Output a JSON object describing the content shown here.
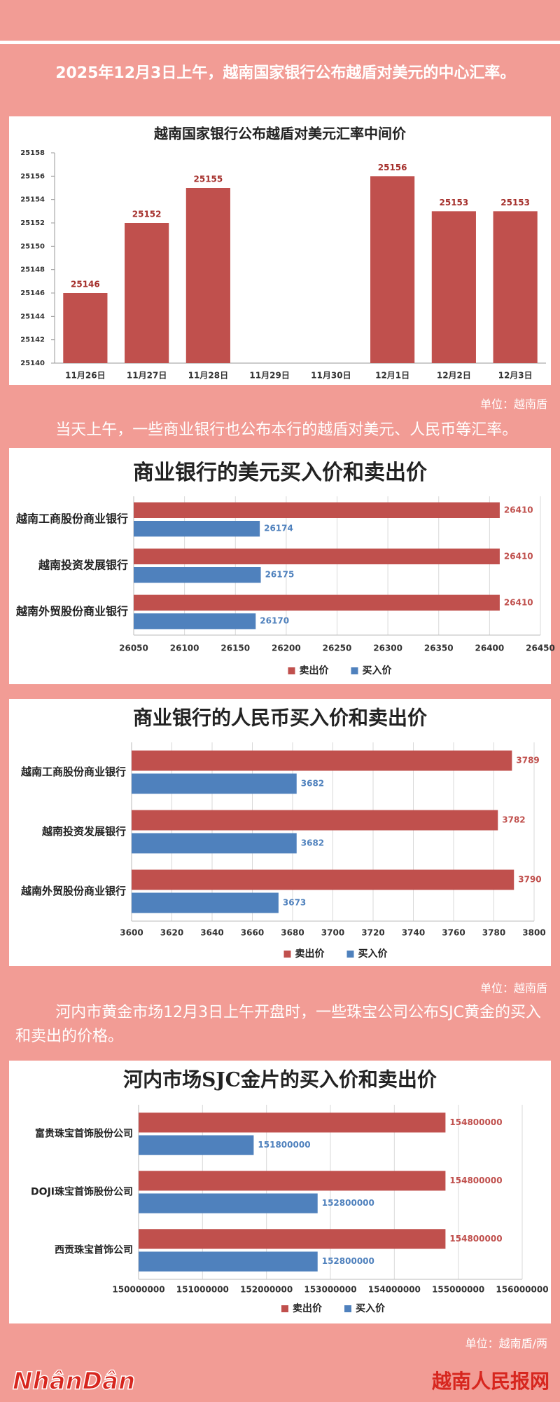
{
  "paragraphs": [
    "2025年12月3日上午，越南国家银行公布越盾对美元的中心汇率。",
    "当天上午，一些商业银行也公布本行的越盾对美元、人民币等汇率。",
    "河内市黄金市场12月3日上午开盘时，一些珠宝公司公布SJC黄金的买入和卖出的价格。"
  ],
  "units": [
    "单位：越南盾",
    "单位：越南盾",
    "单位：越南盾/两"
  ],
  "footer": {
    "logo": "NhânDân",
    "site": "越南人民报网"
  },
  "chart_data": [
    {
      "type": "bar",
      "title": "越南国家银行公布越盾对美元汇率中间价",
      "categories": [
        "11月26日",
        "11月27日",
        "11月28日",
        "11月29日",
        "11月30日",
        "12月1日",
        "12月2日",
        "12月3日"
      ],
      "values": [
        25146,
        25152,
        25155,
        null,
        null,
        25156,
        25153,
        25153
      ],
      "color": "#c0504d",
      "ylim": [
        25140,
        25158
      ],
      "yticks": [
        25140,
        25142,
        25144,
        25146,
        25148,
        25150,
        25152,
        25154,
        25156,
        25158
      ],
      "grid": false
    },
    {
      "type": "barh",
      "title": "商业银行的美元买入价和卖出价",
      "categories": [
        "越南工商股份商业银行",
        "越南投资发展银行",
        "越南外贸股份商业银行"
      ],
      "series": [
        {
          "name": "卖出价",
          "color": "#c0504d",
          "values": [
            26410,
            26410,
            26410
          ]
        },
        {
          "name": "买入价",
          "color": "#4f81bd",
          "values": [
            26174,
            26175,
            26170
          ]
        }
      ],
      "xlim": [
        26050,
        26450
      ],
      "xticks": [
        26050,
        26100,
        26150,
        26200,
        26250,
        26300,
        26350,
        26400,
        26450
      ],
      "grid": true,
      "legend": "bottom"
    },
    {
      "type": "barh",
      "title": "商业银行的人民币买入价和卖出价",
      "categories": [
        "越南工商股份商业银行",
        "越南投资发展银行",
        "越南外贸股份商业银行"
      ],
      "series": [
        {
          "name": "卖出价",
          "color": "#c0504d",
          "values": [
            3789,
            3782,
            3790
          ]
        },
        {
          "name": "买入价",
          "color": "#4f81bd",
          "values": [
            3682,
            3682,
            3673
          ]
        }
      ],
      "xlim": [
        3600,
        3800
      ],
      "xticks": [
        3600,
        3620,
        3640,
        3660,
        3680,
        3700,
        3720,
        3740,
        3760,
        3780,
        3800
      ],
      "grid": true,
      "legend": "bottom"
    },
    {
      "type": "barh",
      "title": "河内市场SJC金片的买入价和卖出价",
      "categories": [
        "富贵珠宝首饰股份公司",
        "DOJI珠宝首饰股份公司",
        "西贡珠宝首饰公司"
      ],
      "series": [
        {
          "name": "卖出价",
          "color": "#c0504d",
          "values": [
            154800000,
            154800000,
            154800000
          ]
        },
        {
          "name": "买入价",
          "color": "#4f81bd",
          "values": [
            151800000,
            152800000,
            152800000
          ]
        }
      ],
      "xlim": [
        150000000,
        156000000
      ],
      "xticks": [
        150000000,
        151000000,
        152000000,
        153000000,
        154000000,
        155000000,
        156000000
      ],
      "grid": true,
      "legend": "bottom"
    }
  ]
}
